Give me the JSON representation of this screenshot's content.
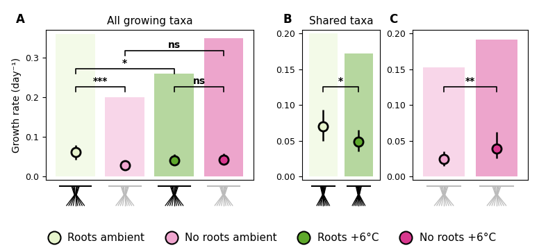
{
  "legend": "lower center",
  "groups": [
    {
      "name": "Roots ambient",
      "color": "#e6f4cc",
      "roots": true
    },
    {
      "name": "No roots ambient",
      "color": "#f0a6cf",
      "roots": false
    },
    {
      "name": "Roots +6°C",
      "color": "#5ea82b",
      "roots": true
    },
    {
      "name": "No roots +6°C",
      "color": "#d8388e",
      "roots": false
    }
  ],
  "chart_data": [
    {
      "type": "scatter",
      "panel_label": "A",
      "title": "All growing taxa",
      "ylabel": "Growth rate (day⁻¹)",
      "groups": [
        "Roots ambient",
        "No roots ambient",
        "Roots +6°C",
        "No roots +6°C"
      ],
      "values": [
        0.06,
        0.027,
        0.04,
        0.041
      ],
      "error_low": [
        0.042,
        0.02,
        0.03,
        0.03
      ],
      "error_high": [
        0.078,
        0.035,
        0.055,
        0.057
      ],
      "spread_low": [
        0.0,
        0.0,
        0.0,
        0.0
      ],
      "spread_high": [
        0.36,
        0.2,
        0.26,
        0.35
      ],
      "ylim": [
        -0.01,
        0.37
      ],
      "yticks": [
        {
          "value": 0.0,
          "label": "0.0"
        },
        0.1,
        0.2,
        0.3
      ],
      "comparisons": [
        {
          "between": [
            "Roots ambient",
            "No roots ambient"
          ],
          "label": "***"
        },
        {
          "between": [
            "Roots ambient",
            "Roots +6°C"
          ],
          "label": "*"
        },
        {
          "between": [
            "No roots ambient",
            "No roots +6°C"
          ],
          "label": "ns"
        },
        {
          "between": [
            "Roots +6°C",
            "No roots +6°C"
          ],
          "label": "ns"
        }
      ]
    },
    {
      "type": "scatter",
      "panel_label": "B",
      "title": "Shared taxa",
      "groups": [
        "Roots ambient",
        "Roots +6°C"
      ],
      "values": [
        0.07,
        0.049
      ],
      "error_low": [
        0.05,
        0.035
      ],
      "error_high": [
        0.093,
        0.065
      ],
      "spread_low": [
        0.0,
        0.0
      ],
      "spread_high": [
        0.2,
        0.172
      ],
      "ylim": [
        -0.005,
        0.205
      ],
      "yticks": [
        {
          "value": 0.0,
          "label": "0.00"
        },
        0.05,
        {
          "value": 0.1,
          "label": "0.10"
        },
        0.15,
        {
          "value": 0.2,
          "label": "0.20"
        }
      ],
      "comparisons": [
        {
          "between": [
            "Roots ambient",
            "Roots +6°C"
          ],
          "label": "*"
        }
      ]
    },
    {
      "type": "scatter",
      "panel_label": "C",
      "groups": [
        "No roots ambient",
        "No roots +6°C"
      ],
      "values": [
        0.024,
        0.039
      ],
      "error_low": [
        0.015,
        0.025
      ],
      "error_high": [
        0.035,
        0.062
      ],
      "spread_low": [
        0.0,
        0.0
      ],
      "spread_high": [
        0.153,
        0.192
      ],
      "ylim": [
        -0.005,
        0.205
      ],
      "yticks": [
        {
          "value": 0.0,
          "label": "0.00"
        },
        0.05,
        {
          "value": 0.1,
          "label": "0.10"
        },
        0.15,
        {
          "value": 0.2,
          "label": "0.20"
        }
      ],
      "comparisons": [
        {
          "between": [
            "No roots ambient",
            "No roots +6°C"
          ],
          "label": "**"
        }
      ]
    }
  ]
}
